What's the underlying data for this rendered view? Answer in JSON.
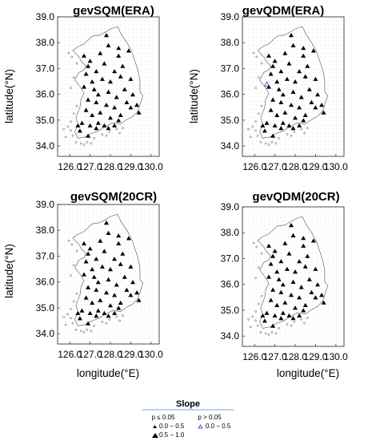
{
  "chart_data": [
    {
      "type": "scatter",
      "title": "gevSQM(ERA)",
      "xlabel": "",
      "ylabel": "latitude(°N)",
      "xlim": [
        125.4,
        130.4
      ],
      "ylim": [
        33.6,
        39.0
      ],
      "xticks": [
        "126.0",
        "127.0",
        "128.0",
        "129.0",
        "130.0"
      ],
      "yticks": [
        "34.0",
        "35.0",
        "36.0",
        "37.0",
        "38.0",
        "39.0"
      ],
      "grid": true,
      "series": [
        {
          "name": "0.0 − 0.5",
          "marker": "filled-small-triangle",
          "x": [
            126.7,
            127.0,
            127.5,
            127.9,
            128.4,
            128.9,
            126.9,
            127.3,
            127.7,
            128.2,
            128.6,
            126.8,
            127.1,
            127.6,
            128.0,
            128.5,
            129.0,
            126.7,
            127.2,
            127.4,
            127.9,
            128.3,
            128.7,
            129.1,
            126.9,
            127.3,
            127.8,
            128.2,
            128.8,
            129.3,
            126.8,
            127.1,
            127.5,
            128.0,
            128.5,
            129.0,
            129.4,
            126.6,
            127.0,
            127.4,
            127.9,
            128.4,
            126.5,
            126.9,
            127.3,
            127.7,
            128.2,
            126.4,
            127.8,
            128.4
          ],
          "y": [
            37.5,
            37.3,
            37.6,
            37.9,
            37.5,
            37.7,
            37.1,
            36.9,
            37.2,
            36.9,
            37.1,
            36.8,
            36.5,
            36.6,
            36.5,
            36.7,
            36.6,
            36.3,
            36.2,
            36.0,
            36.1,
            35.9,
            36.2,
            36.0,
            35.8,
            35.7,
            35.6,
            35.5,
            35.7,
            35.6,
            35.4,
            35.2,
            35.3,
            35.1,
            35.2,
            35.5,
            35.3,
            34.9,
            34.8,
            34.9,
            34.7,
            35.0,
            34.6,
            34.4,
            34.7,
            34.8,
            34.8,
            34.8,
            38.3,
            37.8
          ]
        }
      ]
    },
    {
      "type": "scatter",
      "title": "gevQDM(ERA)",
      "xlabel": "",
      "ylabel": "latitude(°N)",
      "xlim": [
        125.4,
        130.4
      ],
      "ylim": [
        33.6,
        39.0
      ],
      "xticks": [
        "126.0",
        "127.0",
        "128.0",
        "129.0",
        "130.0"
      ],
      "yticks": [
        "34.0",
        "35.0",
        "36.0",
        "37.0",
        "38.0",
        "39.0"
      ],
      "grid": true,
      "series": [
        {
          "name": "0.0 − 0.5",
          "marker": "filled-small-triangle",
          "x": [
            126.7,
            127.0,
            127.5,
            127.9,
            128.4,
            128.9,
            126.9,
            127.3,
            127.7,
            128.2,
            128.6,
            126.8,
            127.1,
            127.6,
            128.0,
            128.5,
            129.0,
            126.7,
            127.2,
            127.4,
            127.9,
            128.3,
            128.7,
            129.1,
            126.9,
            127.3,
            127.8,
            128.2,
            128.8,
            129.3,
            126.8,
            127.1,
            127.5,
            128.0,
            128.5,
            129.0,
            129.4,
            126.6,
            127.0,
            127.4,
            127.9,
            128.4,
            126.5,
            126.9,
            127.3,
            127.7,
            128.2,
            126.4,
            127.8,
            128.4
          ],
          "y": [
            37.5,
            37.3,
            37.6,
            37.9,
            37.5,
            37.7,
            37.1,
            36.9,
            37.2,
            36.9,
            37.1,
            36.8,
            36.5,
            36.6,
            36.5,
            36.7,
            36.6,
            36.3,
            36.2,
            36.0,
            36.1,
            35.9,
            36.2,
            36.0,
            35.8,
            35.7,
            35.6,
            35.5,
            35.7,
            35.6,
            35.4,
            35.2,
            35.3,
            35.1,
            35.2,
            35.5,
            35.3,
            34.9,
            34.8,
            34.9,
            34.7,
            35.0,
            34.6,
            34.4,
            34.7,
            34.8,
            34.8,
            34.8,
            38.3,
            37.8
          ]
        },
        {
          "name": "0.0 − 0.5 (p > 0.05)",
          "marker": "open-blue-triangle",
          "x": [
            126.6
          ],
          "y": [
            36.4
          ]
        }
      ]
    },
    {
      "type": "scatter",
      "title": "gevSQM(20CR)",
      "xlabel": "longitude(°E)",
      "ylabel": "latitude(°N)",
      "xlim": [
        125.4,
        130.4
      ],
      "ylim": [
        33.6,
        39.0
      ],
      "xticks": [
        "126.0",
        "127.0",
        "128.0",
        "129.0",
        "130.0"
      ],
      "yticks": [
        "34.0",
        "35.0",
        "36.0",
        "37.0",
        "38.0",
        "39.0"
      ],
      "grid": true,
      "series": [
        {
          "name": "0.0 − 0.5",
          "marker": "filled-small-triangle",
          "x": [
            126.7,
            127.0,
            127.5,
            127.9,
            128.4,
            128.9,
            126.9,
            127.3,
            127.7,
            128.2,
            128.6,
            126.8,
            127.1,
            127.6,
            128.0,
            128.5,
            129.0,
            126.7,
            127.2,
            127.4,
            127.9,
            128.3,
            128.7,
            129.1,
            126.9,
            127.3,
            127.8,
            128.2,
            128.8,
            129.3,
            126.8,
            127.1,
            127.5,
            128.0,
            128.5,
            129.0,
            129.4,
            126.6,
            127.0,
            127.4,
            127.9,
            128.4,
            126.5,
            126.9,
            127.3,
            127.7,
            128.2,
            126.4,
            127.8,
            128.4
          ],
          "y": [
            37.5,
            37.3,
            37.6,
            37.9,
            37.5,
            37.7,
            37.1,
            36.9,
            37.2,
            36.9,
            37.1,
            36.8,
            36.5,
            36.6,
            36.5,
            36.7,
            36.6,
            36.3,
            36.2,
            36.0,
            36.1,
            35.9,
            36.2,
            36.0,
            35.8,
            35.7,
            35.6,
            35.5,
            35.7,
            35.6,
            35.4,
            35.2,
            35.3,
            35.1,
            35.2,
            35.5,
            35.3,
            34.9,
            34.8,
            34.9,
            34.7,
            35.0,
            34.6,
            34.4,
            34.7,
            34.8,
            34.8,
            34.8,
            38.3,
            37.8
          ]
        }
      ]
    },
    {
      "type": "scatter",
      "title": "gevQDM(20CR)",
      "xlabel": "longitude(°E)",
      "ylabel": "",
      "xlim": [
        125.4,
        130.4
      ],
      "ylim": [
        33.6,
        39.0
      ],
      "xticks": [
        "126.0",
        "127.0",
        "128.0",
        "129.0",
        "130.0"
      ],
      "yticks": [
        "34.0",
        "35.0",
        "36.0",
        "37.0",
        "38.0",
        "39.0"
      ],
      "grid": true,
      "series": [
        {
          "name": "0.0 − 0.5",
          "marker": "filled-small-triangle",
          "x": [
            126.7,
            127.0,
            127.5,
            127.9,
            128.4,
            128.9,
            126.9,
            127.3,
            127.7,
            128.2,
            128.6,
            126.8,
            127.1,
            127.6,
            128.0,
            128.5,
            129.0,
            126.7,
            127.2,
            127.4,
            127.9,
            128.3,
            128.7,
            129.1,
            126.9,
            127.3,
            127.8,
            128.2,
            128.8,
            129.3,
            126.8,
            127.1,
            127.5,
            128.0,
            128.5,
            129.0,
            129.4,
            126.6,
            127.0,
            127.4,
            127.9,
            128.4,
            126.5,
            126.9,
            127.3,
            127.7,
            128.2,
            126.4,
            127.8,
            128.4
          ],
          "y": [
            37.5,
            37.3,
            37.6,
            37.9,
            37.5,
            37.7,
            37.1,
            36.9,
            37.2,
            36.9,
            37.1,
            36.8,
            36.5,
            36.6,
            36.5,
            36.7,
            36.6,
            36.3,
            36.2,
            36.0,
            36.1,
            35.9,
            36.2,
            36.0,
            35.8,
            35.7,
            35.6,
            35.5,
            35.7,
            35.6,
            35.4,
            35.2,
            35.3,
            35.1,
            35.2,
            35.5,
            35.3,
            34.9,
            34.8,
            34.9,
            34.7,
            35.0,
            34.6,
            34.4,
            34.7,
            34.8,
            34.8,
            34.8,
            38.3,
            37.8
          ]
        }
      ]
    }
  ],
  "legend": {
    "title": "Slope",
    "col1_header": "p ≤ 0.05",
    "col2_header": "p > 0.05",
    "entries": [
      {
        "label": "0.0 − 0.5",
        "marker": "filled-small-triangle"
      },
      {
        "label": "0.5 − 1.0",
        "marker": "filled-large-triangle"
      },
      {
        "label": "0.0 − 0.5",
        "marker": "open-blue-triangle"
      }
    ],
    "colors": {
      "rule": "#6fa8dc",
      "open_marker": "#1f3fbf"
    }
  },
  "map": {
    "outline": [
      [
        126.15,
        37.7
      ],
      [
        126.4,
        37.85
      ],
      [
        126.7,
        37.95
      ],
      [
        127.1,
        38.25
      ],
      [
        127.5,
        38.3
      ],
      [
        128.05,
        38.55
      ],
      [
        128.35,
        38.62
      ],
      [
        128.55,
        38.3
      ],
      [
        128.85,
        37.95
      ],
      [
        129.05,
        37.65
      ],
      [
        129.2,
        37.3
      ],
      [
        129.35,
        36.95
      ],
      [
        129.45,
        36.55
      ],
      [
        129.45,
        36.1
      ],
      [
        129.6,
        35.95
      ],
      [
        129.45,
        35.6
      ],
      [
        129.35,
        35.35
      ],
      [
        129.1,
        35.15
      ],
      [
        128.75,
        35.0
      ],
      [
        128.5,
        34.85
      ],
      [
        128.1,
        34.9
      ],
      [
        127.75,
        34.75
      ],
      [
        127.45,
        34.6
      ],
      [
        127.1,
        34.5
      ],
      [
        126.75,
        34.35
      ],
      [
        126.4,
        34.3
      ],
      [
        126.25,
        34.55
      ],
      [
        126.4,
        34.85
      ],
      [
        126.3,
        35.1
      ],
      [
        126.5,
        35.5
      ],
      [
        126.55,
        35.8
      ],
      [
        126.7,
        36.05
      ],
      [
        126.5,
        36.3
      ],
      [
        126.25,
        36.55
      ],
      [
        126.45,
        36.85
      ],
      [
        126.7,
        36.95
      ],
      [
        126.8,
        37.1
      ],
      [
        126.6,
        37.25
      ],
      [
        126.45,
        37.45
      ],
      [
        126.15,
        37.7
      ]
    ],
    "islands": [
      [
        126.05,
        34.6
      ],
      [
        126.15,
        34.4
      ],
      [
        126.3,
        34.15
      ],
      [
        126.55,
        34.1
      ],
      [
        126.85,
        34.15
      ],
      [
        127.2,
        34.3
      ],
      [
        127.6,
        34.45
      ],
      [
        127.95,
        34.55
      ],
      [
        128.3,
        34.65
      ],
      [
        128.6,
        34.7
      ],
      [
        125.9,
        34.75
      ],
      [
        126.05,
        34.95
      ],
      [
        126.2,
        35.25
      ],
      [
        126.35,
        35.55
      ],
      [
        126.05,
        36.25
      ],
      [
        126.2,
        36.65
      ],
      [
        126.35,
        37.2
      ],
      [
        125.95,
        37.6
      ],
      [
        126.1,
        37.45
      ],
      [
        125.8,
        34.35
      ],
      [
        126.7,
        34.05
      ],
      [
        127.05,
        34.1
      ],
      [
        127.8,
        34.4
      ],
      [
        128.45,
        34.5
      ],
      [
        125.7,
        34.65
      ]
    ]
  }
}
